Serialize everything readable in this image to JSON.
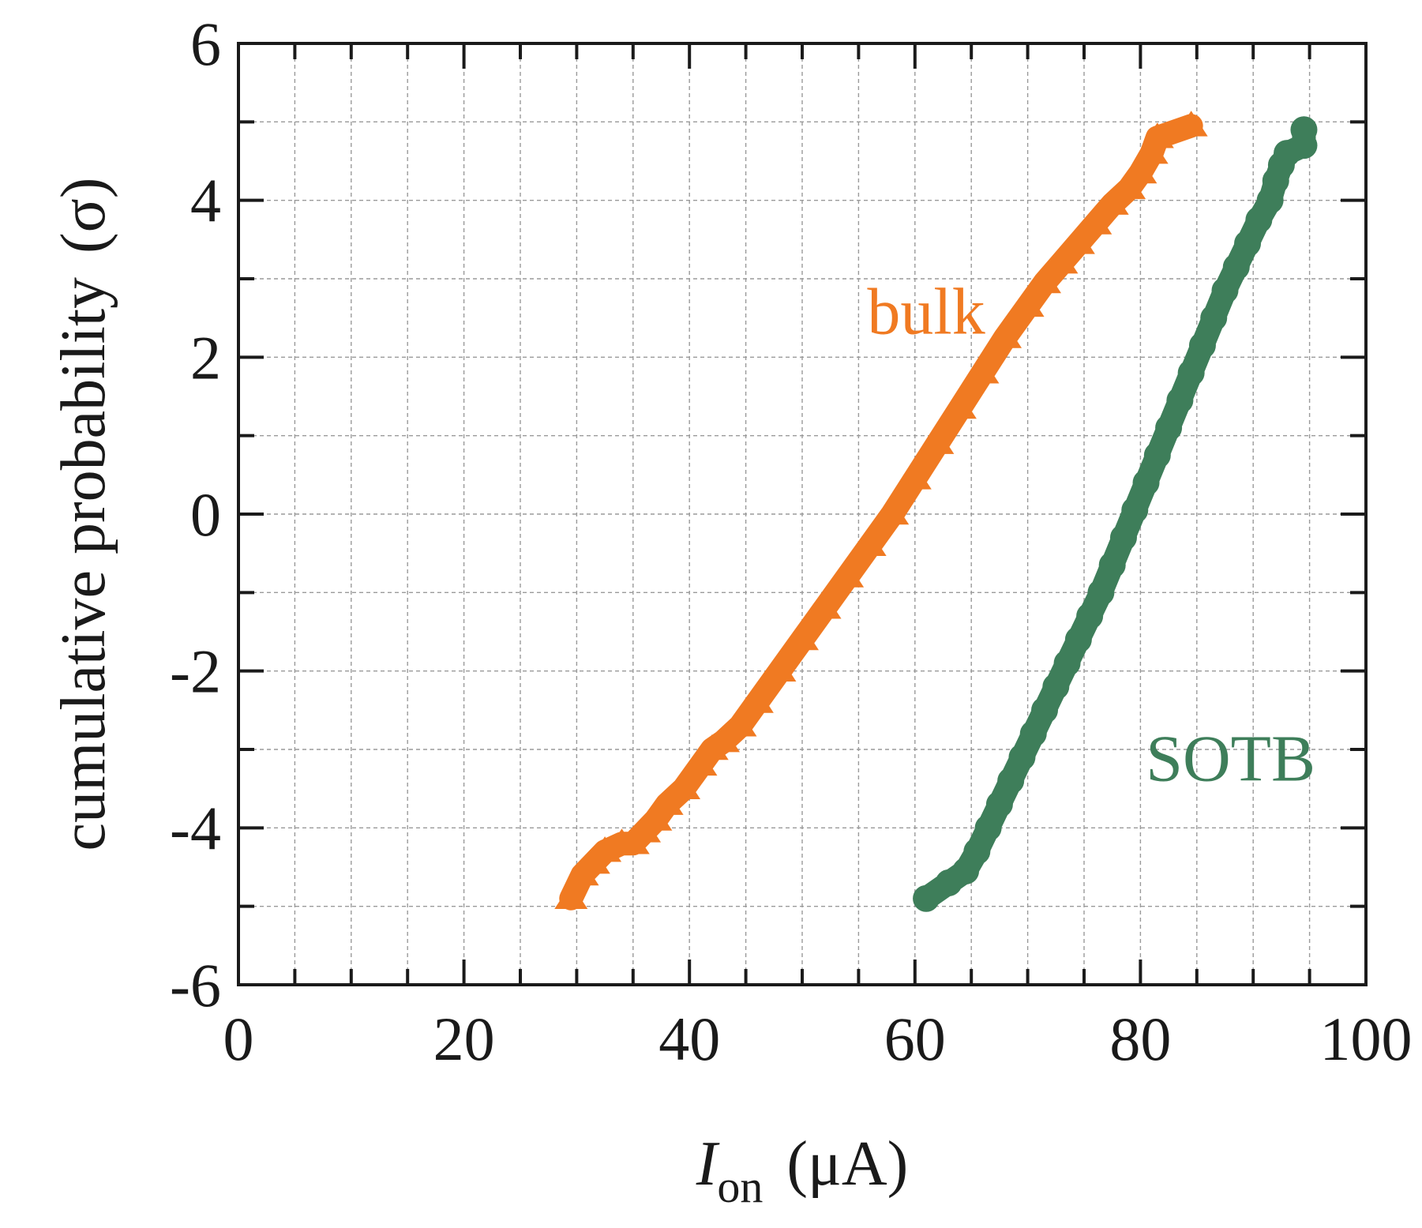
{
  "chart_data": {
    "type": "scatter",
    "title": "",
    "xlabel": {
      "main": "I",
      "subscript": "on",
      "unit": "(μA)"
    },
    "ylabel": {
      "main": "cumulative probability",
      "unit": "(σ)"
    },
    "xlim": [
      0,
      100
    ],
    "ylim": [
      -6,
      6
    ],
    "xticks": [
      0,
      20,
      40,
      60,
      80,
      100
    ],
    "yticks": [
      -6,
      -4,
      -2,
      0,
      2,
      4,
      6
    ],
    "x_minor_step": 5,
    "y_minor_step": 1,
    "grid": true,
    "series": [
      {
        "name": "bulk",
        "marker": "triangle",
        "color": "#F07A22",
        "points": [
          [
            29.5,
            -4.9
          ],
          [
            30.5,
            -4.6
          ],
          [
            31.5,
            -4.45
          ],
          [
            32.5,
            -4.3
          ],
          [
            34,
            -4.2
          ],
          [
            35,
            -4.2
          ],
          [
            36,
            -4.05
          ],
          [
            37,
            -3.9
          ],
          [
            38,
            -3.7
          ],
          [
            39.5,
            -3.5
          ],
          [
            41,
            -3.2
          ],
          [
            42,
            -3.0
          ],
          [
            43,
            -2.9
          ],
          [
            44.5,
            -2.7
          ],
          [
            46,
            -2.4
          ],
          [
            48,
            -2.0
          ],
          [
            50,
            -1.6
          ],
          [
            52,
            -1.2
          ],
          [
            54,
            -0.8
          ],
          [
            56,
            -0.4
          ],
          [
            58,
            0.0
          ],
          [
            60,
            0.45
          ],
          [
            62,
            0.9
          ],
          [
            64,
            1.35
          ],
          [
            66,
            1.8
          ],
          [
            68,
            2.25
          ],
          [
            70,
            2.65
          ],
          [
            71.5,
            2.95
          ],
          [
            73,
            3.2
          ],
          [
            74.5,
            3.45
          ],
          [
            76,
            3.7
          ],
          [
            77.5,
            3.95
          ],
          [
            79,
            4.15
          ],
          [
            80,
            4.35
          ],
          [
            81,
            4.6
          ],
          [
            81.5,
            4.8
          ],
          [
            84.5,
            4.95
          ]
        ]
      },
      {
        "name": "SOTB",
        "marker": "circle",
        "color": "#3E7E5A",
        "points": [
          [
            61,
            -4.9
          ],
          [
            63,
            -4.7
          ],
          [
            64.5,
            -4.55
          ],
          [
            65.5,
            -4.3
          ],
          [
            66.5,
            -4.0
          ],
          [
            67.5,
            -3.7
          ],
          [
            68.5,
            -3.4
          ],
          [
            69.5,
            -3.1
          ],
          [
            70.5,
            -2.8
          ],
          [
            71.5,
            -2.5
          ],
          [
            72.5,
            -2.2
          ],
          [
            73.5,
            -1.9
          ],
          [
            74.5,
            -1.6
          ],
          [
            75.5,
            -1.3
          ],
          [
            76.5,
            -1.0
          ],
          [
            77.5,
            -0.65
          ],
          [
            78.5,
            -0.3
          ],
          [
            79.5,
            0.05
          ],
          [
            80.5,
            0.4
          ],
          [
            81.5,
            0.75
          ],
          [
            82.5,
            1.1
          ],
          [
            83.5,
            1.45
          ],
          [
            84.5,
            1.8
          ],
          [
            85.5,
            2.15
          ],
          [
            86.5,
            2.5
          ],
          [
            87.5,
            2.85
          ],
          [
            88.5,
            3.15
          ],
          [
            89.5,
            3.45
          ],
          [
            90.5,
            3.75
          ],
          [
            91.5,
            4.0
          ],
          [
            92,
            4.25
          ],
          [
            92.5,
            4.45
          ],
          [
            93,
            4.6
          ],
          [
            94.5,
            4.7
          ],
          [
            94.5,
            4.9
          ]
        ]
      }
    ],
    "annotations": [
      {
        "text": "bulk",
        "x": 61,
        "y": 2.3,
        "color": "#F07A22"
      },
      {
        "text": "SOTB",
        "x": 88,
        "y": -3.4,
        "color": "#3E7E5A"
      }
    ]
  }
}
